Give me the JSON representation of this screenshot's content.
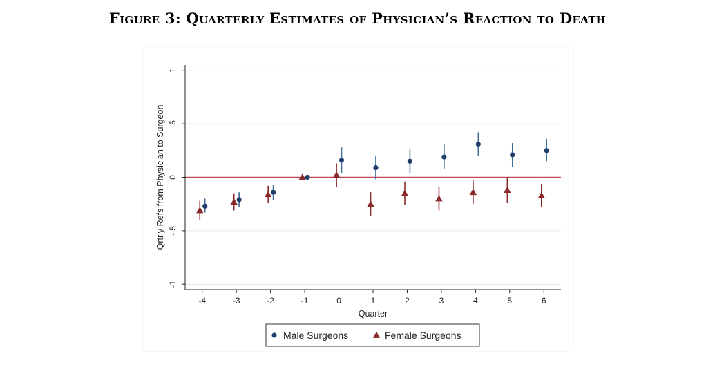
{
  "figure": {
    "title": "Figure 3: Quarterly Estimates of Physician’s Reaction to Death"
  },
  "chart_data": {
    "type": "scatter",
    "title": "Figure 3: Quarterly Estimates of Physician’s Reaction to Death",
    "xlabel": "Quarter",
    "ylabel": "Qrtrly Refs from Physician to Surgeon",
    "x": [
      -4,
      -3,
      -2,
      -1,
      0,
      1,
      2,
      3,
      4,
      5,
      6
    ],
    "xticks": [
      "-4",
      "-3",
      "-2",
      "-1",
      "0",
      "1",
      "2",
      "3",
      "4",
      "5",
      "6"
    ],
    "yticks": [
      {
        "value": 1,
        "label": "1"
      },
      {
        "value": 0.5,
        "label": ".5"
      },
      {
        "value": 0,
        "label": "0"
      },
      {
        "value": -0.5,
        "label": "-.5"
      },
      {
        "value": -1,
        "label": "-1"
      }
    ],
    "ylim": [
      -1,
      1
    ],
    "xlim": [
      -4.5,
      6.5
    ],
    "grid": "horizontal",
    "reference_line": {
      "y": 0,
      "color": "#c0485a"
    },
    "legend_position": "bottom",
    "series": [
      {
        "name": "Male Surgeons",
        "marker": "circle",
        "color": "#1f3f6b",
        "error_color": "#3e6d96",
        "values": [
          -0.27,
          -0.21,
          -0.14,
          0.0,
          0.16,
          0.09,
          0.15,
          0.19,
          0.31,
          0.21,
          0.25
        ],
        "ci_low": [
          -0.33,
          -0.28,
          -0.21,
          0.0,
          0.04,
          -0.02,
          0.04,
          0.08,
          0.2,
          0.1,
          0.15
        ],
        "ci_high": [
          -0.2,
          -0.14,
          -0.07,
          0.0,
          0.28,
          0.2,
          0.26,
          0.31,
          0.42,
          0.32,
          0.36
        ]
      },
      {
        "name": "Female Surgeons",
        "marker": "triangle",
        "color": "#8b2a2a",
        "error_color": "#8b2a2a",
        "values": [
          -0.31,
          -0.23,
          -0.16,
          0.0,
          0.02,
          -0.25,
          -0.15,
          -0.2,
          -0.14,
          -0.12,
          -0.17
        ],
        "ci_low": [
          -0.4,
          -0.31,
          -0.24,
          0.0,
          -0.09,
          -0.36,
          -0.26,
          -0.31,
          -0.25,
          -0.24,
          -0.28
        ],
        "ci_high": [
          -0.22,
          -0.15,
          -0.08,
          0.0,
          0.13,
          -0.14,
          -0.04,
          -0.09,
          -0.03,
          0.0,
          -0.06
        ]
      }
    ]
  }
}
